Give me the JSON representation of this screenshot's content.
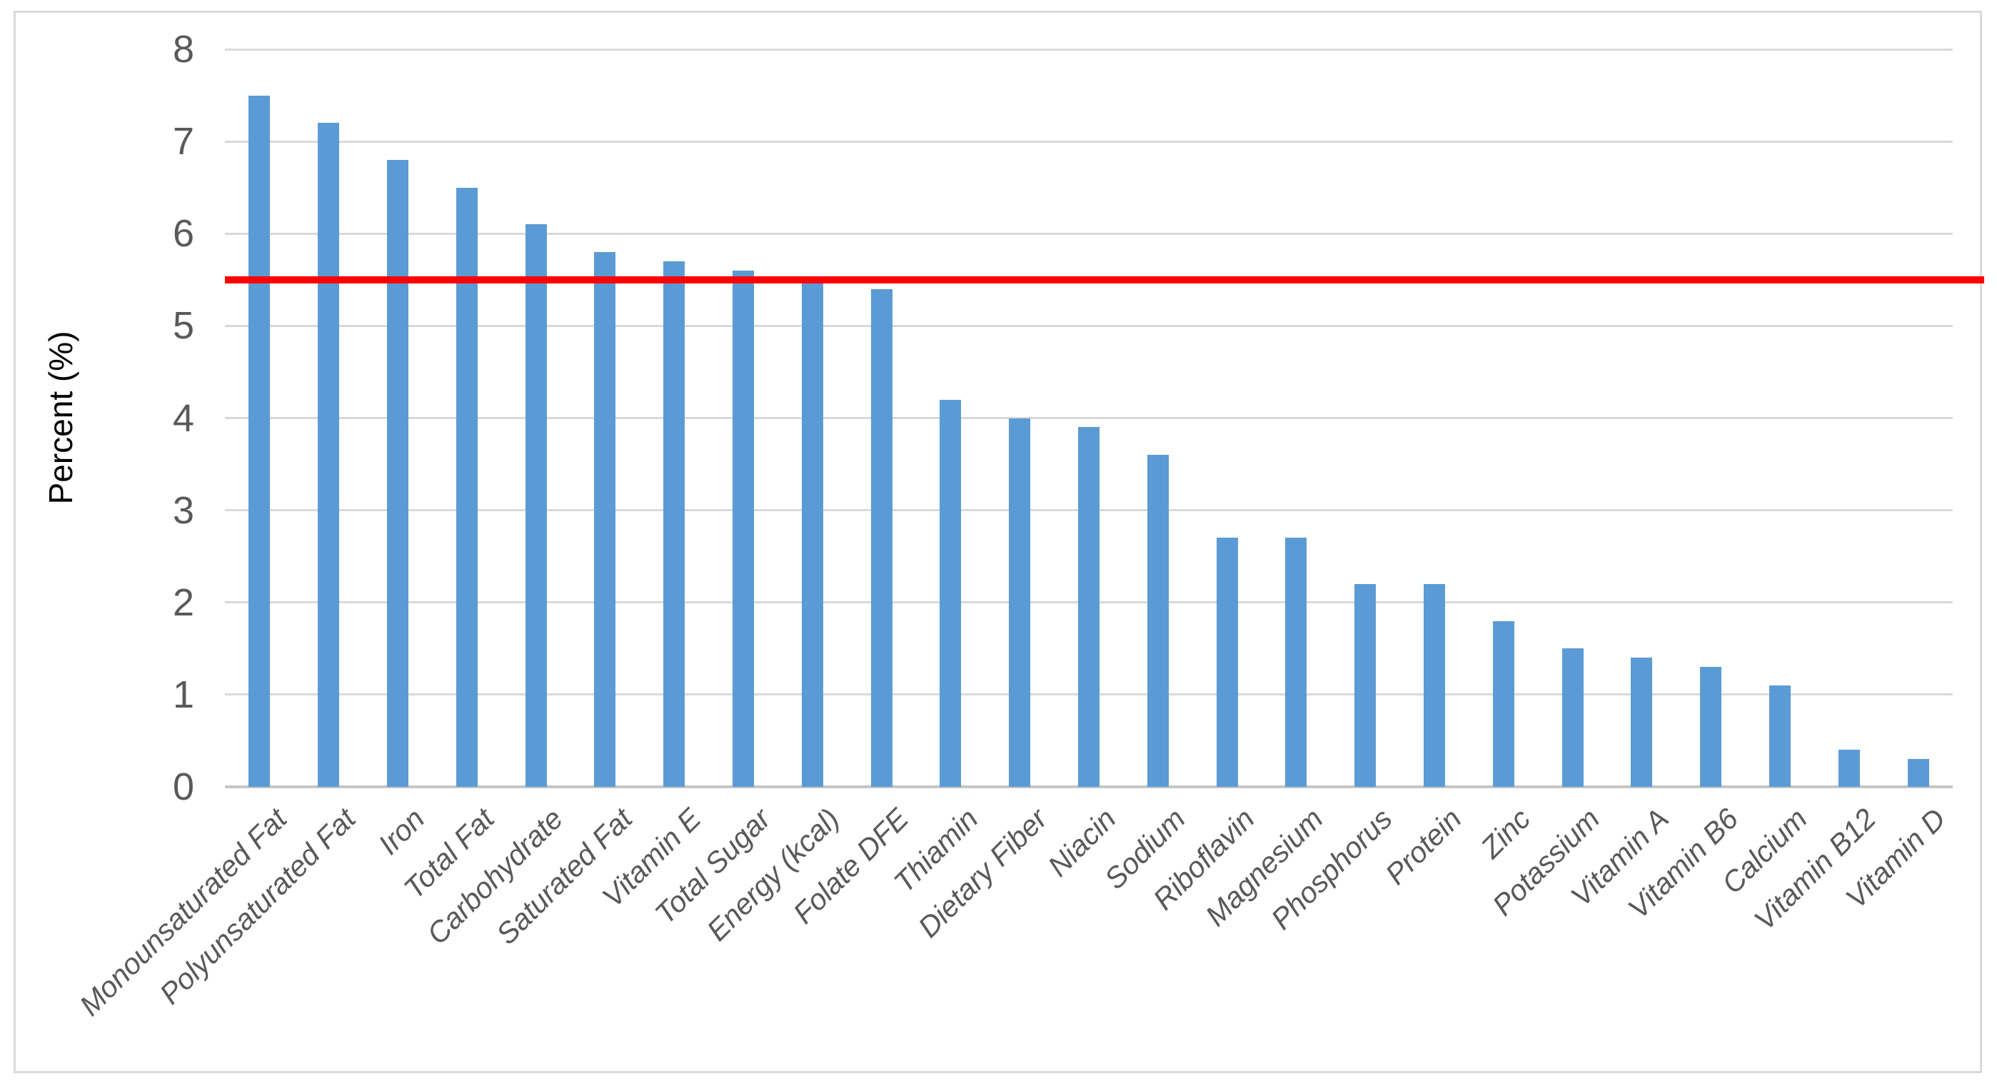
{
  "chart_data": {
    "type": "bar",
    "title": "",
    "xlabel": "",
    "ylabel": "Percent (%)",
    "ylim": [
      0,
      8
    ],
    "yticks": [
      0,
      1,
      2,
      3,
      4,
      5,
      6,
      7,
      8
    ],
    "grid": true,
    "legend": false,
    "categories": [
      "Monounsaturated Fat",
      "Polyunsaturated Fat",
      "Iron",
      "Total Fat",
      "Carbohydrate",
      "Saturated Fat",
      "Vitamin E",
      "Total Sugar",
      "Energy (kcal)",
      "Folate DFE",
      "Thiamin",
      "Dietary Fiber",
      "Niacin",
      "Sodium",
      "Riboflavin",
      "Magnesium",
      "Phosphorus",
      "Protein",
      "Zinc",
      "Potassium",
      "Vitamin A",
      "Vitamin B6",
      "Calcium",
      "Vitamin B12",
      "Vitamin D"
    ],
    "values": [
      7.5,
      7.2,
      6.8,
      6.5,
      6.1,
      5.8,
      5.7,
      5.6,
      5.5,
      5.4,
      4.2,
      4.0,
      3.9,
      3.6,
      2.7,
      2.7,
      2.2,
      2.2,
      1.8,
      1.5,
      1.4,
      1.3,
      1.1,
      0.4,
      0.3
    ],
    "reference_line": {
      "value": 5.5,
      "color": "#FF0000"
    },
    "colors": {
      "bar": "#5B9BD5",
      "gridline": "#D9D9D9",
      "tick_label": "#595959",
      "axis_title": "#000000"
    }
  }
}
